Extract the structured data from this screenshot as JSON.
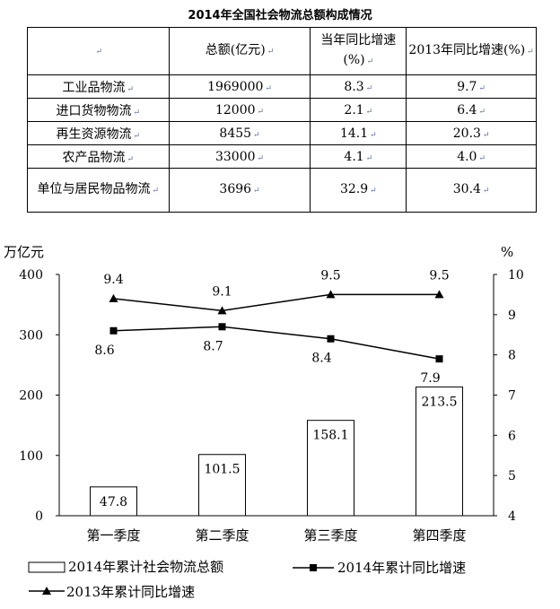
{
  "table": {
    "title": "2014年全国社会物流总额构成情况",
    "headers": [
      "",
      "总额(亿元)",
      "当年同比增速(%)",
      "2013年同比增速(%)"
    ],
    "rows": [
      {
        "name": "工业品物流",
        "total": "1969000",
        "growth_2014": "8.3",
        "growth_2013": "9.7"
      },
      {
        "name": "进口货物物流",
        "total": "12000",
        "growth_2014": "2.1",
        "growth_2013": "6.4"
      },
      {
        "name": "再生资源物流",
        "total": "8455",
        "growth_2014": "14.1",
        "growth_2013": "20.3"
      },
      {
        "name": "农产品物流",
        "total": "33000",
        "growth_2014": "4.1",
        "growth_2013": "4.0"
      },
      {
        "name": "单位与居民物品物流",
        "total": "3696",
        "growth_2014": "32.9",
        "growth_2013": "30.4"
      }
    ]
  },
  "chart_data": {
    "type": "bar",
    "categories": [
      "第一季度",
      "第二季度",
      "第三季度",
      "第四季度"
    ],
    "y_left_label": "万亿元",
    "y_right_label": "%",
    "y_left_range": [
      0,
      400
    ],
    "y_left_ticks": [
      "0",
      "100",
      "200",
      "300",
      "400"
    ],
    "y_right_range": [
      4,
      10
    ],
    "y_right_ticks": [
      "4",
      "5",
      "6",
      "7",
      "8",
      "9",
      "10"
    ],
    "grid": false,
    "legend_placement": "bottom",
    "series": [
      {
        "name": "2014年累计社会物流总额",
        "type": "bar",
        "axis": "left",
        "values": [
          47.8,
          101.5,
          158.1,
          213.5
        ],
        "labels": [
          "47.8",
          "101.5",
          "158.1",
          "213.5"
        ]
      },
      {
        "name": "2014年累计同比增速",
        "type": "line",
        "axis": "right",
        "marker": "square",
        "values": [
          8.6,
          8.7,
          8.4,
          7.9
        ],
        "labels": [
          "8.6",
          "8.7",
          "8.4",
          "7.9"
        ]
      },
      {
        "name": "2013年累计同比增速",
        "type": "line",
        "axis": "right",
        "marker": "triangle",
        "values": [
          9.4,
          9.1,
          9.5,
          9.5
        ],
        "labels": [
          "9.4",
          "9.1",
          "9.5",
          "9.5"
        ]
      }
    ]
  }
}
